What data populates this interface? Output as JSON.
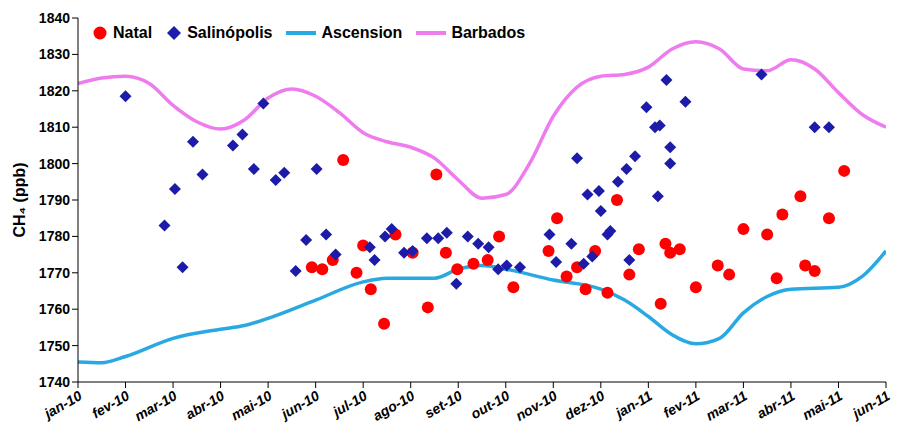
{
  "chart_data": {
    "type": "scatter",
    "y_label": "CH₄ (ppb)",
    "legend": "top",
    "xlim": [
      0,
      17
    ],
    "xticks": [
      {
        "value": 0,
        "label": "jan-10"
      },
      {
        "value": 1,
        "label": "fev-10"
      },
      {
        "value": 2,
        "label": "mar-10"
      },
      {
        "value": 3,
        "label": "abr-10"
      },
      {
        "value": 4,
        "label": "mai-10"
      },
      {
        "value": 5,
        "label": "jun-10"
      },
      {
        "value": 6,
        "label": "jul-10"
      },
      {
        "value": 7,
        "label": "ago-10"
      },
      {
        "value": 8,
        "label": "set-10"
      },
      {
        "value": 9,
        "label": "out-10"
      },
      {
        "value": 10,
        "label": "nov-10"
      },
      {
        "value": 11,
        "label": "dez-10"
      },
      {
        "value": 12,
        "label": "jan-11"
      },
      {
        "value": 13,
        "label": "fev-11"
      },
      {
        "value": 14,
        "label": "mar-11"
      },
      {
        "value": 15,
        "label": "abr-11"
      },
      {
        "value": 16,
        "label": "mai-11"
      },
      {
        "value": 17,
        "label": "jun-11"
      }
    ],
    "ylim": [
      1740,
      1840
    ],
    "yticks": [
      1740,
      1750,
      1760,
      1770,
      1780,
      1790,
      1800,
      1810,
      1820,
      1830,
      1840
    ],
    "series": [
      {
        "name": "Natal",
        "type": "scatter",
        "marker": "circle",
        "color": "#ff0000",
        "x": [
          4.92,
          5.14,
          5.36,
          5.58,
          5.86,
          6.0,
          6.16,
          6.44,
          6.68,
          7.04,
          7.36,
          7.54,
          7.74,
          7.98,
          8.32,
          8.62,
          8.86,
          9.16,
          9.9,
          10.08,
          10.28,
          10.5,
          10.68,
          10.88,
          11.14,
          11.34,
          11.6,
          11.8,
          12.26,
          12.36,
          12.46,
          12.66,
          13.0,
          13.46,
          13.7,
          14.0,
          14.5,
          14.7,
          14.82,
          15.2,
          15.3,
          15.5,
          15.8,
          16.12
        ],
        "values": [
          1771.5,
          1771,
          1773.5,
          1801,
          1770,
          1777.5,
          1765.5,
          1756,
          1780.5,
          1775.5,
          1760.5,
          1797,
          1775.5,
          1771,
          1772.5,
          1773.5,
          1780,
          1766,
          1776,
          1785,
          1769,
          1771.5,
          1765.5,
          1776,
          1764.5,
          1790,
          1769.5,
          1776.5,
          1761.5,
          1778,
          1775.5,
          1776.5,
          1766,
          1772,
          1769.5,
          1782,
          1780.5,
          1768.5,
          1786,
          1791,
          1772,
          1770.5,
          1785,
          1798
        ]
      },
      {
        "name": "Salinópolis",
        "type": "scatter",
        "marker": "diamond",
        "color": "#1c1ca8",
        "x": [
          1.0,
          1.82,
          2.04,
          2.2,
          2.42,
          2.62,
          3.26,
          3.46,
          3.7,
          3.9,
          4.16,
          4.34,
          4.58,
          4.8,
          5.02,
          5.22,
          5.42,
          6.14,
          6.24,
          6.46,
          6.6,
          6.86,
          7.04,
          7.34,
          7.58,
          7.76,
          7.96,
          8.2,
          8.42,
          8.64,
          8.84,
          9.02,
          9.3,
          9.92,
          10.06,
          10.38,
          10.5,
          10.64,
          10.72,
          10.82,
          10.96,
          11.0,
          11.14,
          11.2,
          11.36,
          11.54,
          11.6,
          11.72,
          11.96,
          12.14,
          12.2,
          12.24,
          12.38,
          12.46,
          12.46,
          12.78,
          14.38,
          15.5,
          15.8
        ],
        "values": [
          1818.5,
          1783,
          1793,
          1771.5,
          1806,
          1797,
          1805,
          1808,
          1798.5,
          1816.5,
          1795.5,
          1797.5,
          1770.5,
          1779,
          1798.5,
          1780.5,
          1775,
          1777,
          1773.5,
          1780,
          1782,
          1775.5,
          1776,
          1779.5,
          1779.5,
          1781,
          1767,
          1780,
          1778,
          1777,
          1771,
          1772,
          1771.5,
          1780.5,
          1773,
          1778,
          1801.5,
          1772.5,
          1791.5,
          1774.5,
          1792.5,
          1787,
          1780.5,
          1781.5,
          1795,
          1798.5,
          1773.5,
          1802,
          1815.5,
          1810,
          1791,
          1810.5,
          1823,
          1804.5,
          1800,
          1817,
          1824.5,
          1810,
          1810
        ]
      },
      {
        "name": "Ascension",
        "type": "line",
        "line_style": "solid",
        "color": "#29a9e1",
        "x": [
          0,
          0.5,
          1,
          2,
          3,
          3.5,
          4,
          5,
          6,
          6.5,
          7,
          7.5,
          8,
          8.5,
          9,
          10,
          11,
          11.5,
          12,
          12.5,
          13,
          13.5,
          14,
          14.5,
          15,
          16,
          16.5,
          17
        ],
        "values": [
          1745.5,
          1745.3,
          1747,
          1752,
          1754.5,
          1755.5,
          1757.5,
          1762.5,
          1767.5,
          1768.5,
          1768.5,
          1768.5,
          1771,
          1772,
          1771,
          1768,
          1765.5,
          1762.5,
          1758,
          1753,
          1750.5,
          1752,
          1759,
          1763.5,
          1765.5,
          1766,
          1769,
          1776
        ]
      },
      {
        "name": "Barbados",
        "type": "line",
        "line_style": "solid",
        "color": "#ee7cee",
        "x": [
          0,
          0.5,
          1,
          1.5,
          2,
          2.5,
          3,
          3.5,
          4,
          4.5,
          5,
          5.5,
          6,
          6.5,
          7,
          7.5,
          8,
          8.5,
          9,
          9.5,
          10,
          10.5,
          11,
          11.5,
          12,
          12.5,
          13,
          13.5,
          14,
          14.5,
          15,
          15.5,
          16,
          16.5,
          17
        ],
        "values": [
          1822,
          1823.5,
          1824,
          1822,
          1816,
          1811.5,
          1809.5,
          1812,
          1818,
          1820.5,
          1818.5,
          1814,
          1808.5,
          1806,
          1804.5,
          1801.5,
          1795.5,
          1790.5,
          1791.5,
          1800,
          1813,
          1821,
          1824,
          1824.5,
          1826.5,
          1831.5,
          1833.5,
          1831.5,
          1826,
          1825.5,
          1828.5,
          1826,
          1819.5,
          1813.5,
          1810
        ]
      }
    ]
  }
}
